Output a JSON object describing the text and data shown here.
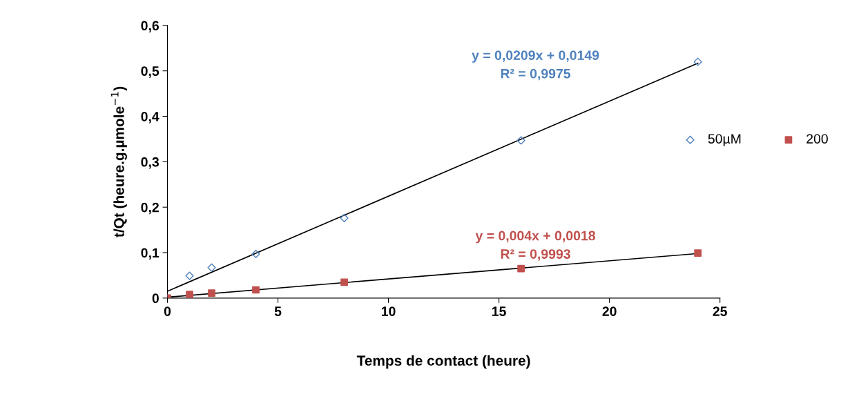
{
  "chart_data": {
    "type": "scatter",
    "xlabel": "Temps de contact (heure)",
    "ylabel": "t/Qt (heure.g.µmole$^{−1}$)",
    "xlim": [
      0,
      25
    ],
    "xticks": [
      0,
      5,
      10,
      15,
      20,
      25
    ],
    "ylim": [
      0,
      0.6
    ],
    "yticks": [
      0,
      {
        "value": 0.1,
        "label": "0,1"
      },
      {
        "value": 0.2,
        "label": "0,2"
      },
      {
        "value": 0.3,
        "label": "0,3"
      },
      {
        "value": 0.4,
        "label": "0,4"
      },
      {
        "value": 0.5,
        "label": "0,5"
      },
      {
        "value": 0.6,
        "label": "0,6"
      }
    ],
    "grid": false,
    "legend": "right",
    "series": [
      {
        "name": "50µM",
        "color": "#4f81bd",
        "marker": "diamond",
        "x": [
          0,
          1,
          2,
          4,
          8,
          16,
          24
        ],
        "values": [
          0,
          0.049,
          0.067,
          0.097,
          0.176,
          0.347,
          0.52
        ]
      },
      {
        "name": "200",
        "color": "#c0504d",
        "marker": "square",
        "x": [
          0,
          1,
          2,
          4,
          8,
          16,
          24
        ],
        "values": [
          0,
          0.008,
          0.011,
          0.018,
          0.035,
          0.065,
          0.099
        ]
      },
      {
        "type": "line",
        "color": "#000000",
        "x": [
          0,
          24
        ],
        "values": [
          0.015,
          0.517
        ]
      },
      {
        "type": "line",
        "color": "#000000",
        "x": [
          0,
          24
        ],
        "values": [
          0.002,
          0.098
        ]
      }
    ],
    "annotations": [
      "y = 0,0209x + 0,0149\nR² = 0,9975",
      "y = 0,004x + 0,0018\nR² = 0,9993"
    ]
  }
}
